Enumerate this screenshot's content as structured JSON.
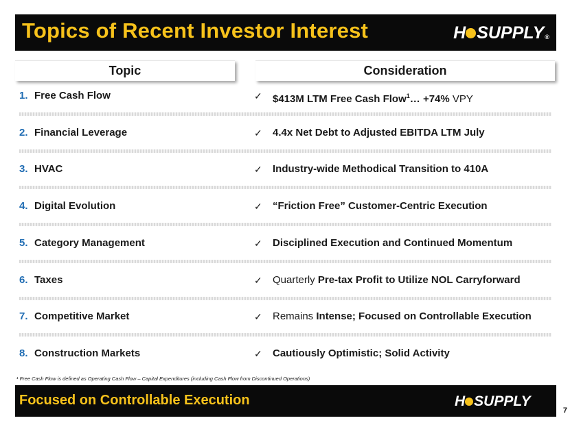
{
  "header": {
    "title": "Topics of Recent Investor Interest",
    "logo": {
      "left": "H",
      "right": "SUPPLY",
      "reg": "®"
    }
  },
  "columns": {
    "topic": "Topic",
    "consideration": "Consideration"
  },
  "rows": [
    {
      "num": "1.",
      "topic": "Free Cash Flow",
      "cons": [
        {
          "t": "$413M LTM Free Cash Flow",
          "b": true
        },
        {
          "t": "1",
          "sup": true,
          "b": true
        },
        {
          "t": "… +74%",
          "b": true
        },
        {
          "t": " VPY",
          "b": false
        }
      ]
    },
    {
      "num": "2.",
      "topic": "Financial Leverage",
      "cons": [
        {
          "t": "4.4x Net Debt to Adjusted EBITDA LTM July",
          "b": true
        }
      ]
    },
    {
      "num": "3.",
      "topic": "HVAC",
      "cons": [
        {
          "t": "Industry-wide Methodical Transition to 410A",
          "b": true
        }
      ]
    },
    {
      "num": "4.",
      "topic": "Digital Evolution",
      "cons": [
        {
          "t": "“Friction Free” Customer-Centric Execution",
          "b": true
        }
      ]
    },
    {
      "num": "5.",
      "topic": "Category Management",
      "cons": [
        {
          "t": "Disciplined Execution and Continued Momentum",
          "b": true
        }
      ]
    },
    {
      "num": "6.",
      "topic": "Taxes",
      "cons": [
        {
          "t": "Quarterly ",
          "b": false
        },
        {
          "t": "Pre-tax Profit to Utilize NOL Carryforward",
          "b": true
        }
      ]
    },
    {
      "num": "7.",
      "topic": "Competitive Market",
      "cons": [
        {
          "t": "Remains ",
          "b": false
        },
        {
          "t": "Intense; Focused on Controllable Execution",
          "b": true
        }
      ]
    },
    {
      "num": "8.",
      "topic": "Construction Markets",
      "cons": [
        {
          "t": "Cautiously Optimistic; Solid Activity",
          "b": true
        }
      ]
    }
  ],
  "check_glyph": "✓",
  "footnote": "¹ Free Cash Flow is defined as Operating Cash Flow – Capital Expenditures (including Cash Flow from Discontinued Operations)",
  "footer": {
    "tagline": "Focused on Controllable Execution",
    "page_number": "7"
  },
  "colors": {
    "accent_yellow": "#f7c21b",
    "number_blue": "#1f6cb3",
    "bar_black": "#0a0a0a"
  }
}
